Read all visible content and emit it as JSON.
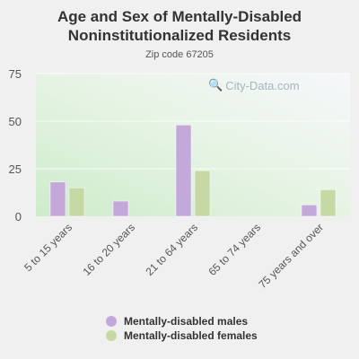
{
  "chart_data": {
    "type": "bar",
    "title_line1": "Age and Sex of Mentally-Disabled",
    "title_line2": "Noninstitutionalized Residents",
    "subtitle": "Zip code 67205",
    "categories": [
      "5 to 15 years",
      "16 to 20 years",
      "21 to 64 years",
      "65 to 74 years",
      "75 years and over"
    ],
    "series": [
      {
        "name": "Mentally-disabled males",
        "color": "#c3a9da",
        "values": [
          18,
          8,
          48,
          0,
          6
        ]
      },
      {
        "name": "Mentally-disabled females",
        "color": "#c6d9a5",
        "values": [
          15,
          0,
          24,
          0,
          14
        ]
      }
    ],
    "ylim": [
      0,
      75
    ],
    "yticks": [
      "0",
      "25",
      "50",
      "75"
    ],
    "grid": true,
    "legend": "bottom"
  },
  "watermark": "City-Data.com",
  "watermark_icon": "magnifier-icon"
}
